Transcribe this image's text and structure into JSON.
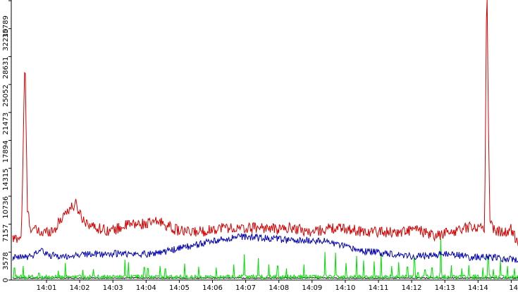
{
  "chart_data": {
    "type": "line",
    "y_ticks": [
      0,
      3578,
      7157,
      10736,
      14315,
      17894,
      21473,
      25052,
      28631,
      32210,
      35789
    ],
    "ylim": [
      0,
      35789
    ],
    "x_ticks": [
      "14:01",
      "14:02",
      "14:03",
      "14:04",
      "14:05",
      "14:06",
      "14:07",
      "14:08",
      "14:09",
      "14:10",
      "14:11",
      "14:12",
      "14:13",
      "14:14",
      "14"
    ],
    "grid": false,
    "legend": "none",
    "series": [
      {
        "color": "#d40000",
        "keypoints": [
          [
            0,
            5200
          ],
          [
            0.25,
            5600
          ],
          [
            0.35,
            28900
          ],
          [
            0.42,
            9000
          ],
          [
            0.5,
            6800
          ],
          [
            0.8,
            6000
          ],
          [
            1.2,
            6500
          ],
          [
            1.5,
            8700
          ],
          [
            1.8,
            9700
          ],
          [
            2.0,
            7800
          ],
          [
            2.3,
            6800
          ],
          [
            2.8,
            6300
          ],
          [
            3.3,
            7100
          ],
          [
            3.8,
            7200
          ],
          [
            4.2,
            7500
          ],
          [
            4.6,
            6500
          ],
          [
            5.0,
            6100
          ],
          [
            5.5,
            6300
          ],
          [
            6.0,
            6800
          ],
          [
            6.5,
            6500
          ],
          [
            7.0,
            6800
          ],
          [
            7.5,
            6500
          ],
          [
            8.0,
            6700
          ],
          [
            8.5,
            6100
          ],
          [
            9.0,
            6600
          ],
          [
            9.5,
            6600
          ],
          [
            10.0,
            6200
          ],
          [
            10.5,
            6200
          ],
          [
            11.0,
            6100
          ],
          [
            11.5,
            6500
          ],
          [
            12.0,
            5600
          ],
          [
            12.5,
            6200
          ],
          [
            13.0,
            6800
          ],
          [
            13.45,
            6800
          ],
          [
            13.5,
            33000
          ],
          [
            13.52,
            35789
          ],
          [
            13.55,
            22000
          ],
          [
            13.6,
            8000
          ],
          [
            13.7,
            6500
          ],
          [
            14.0,
            6000
          ],
          [
            14.2,
            6500
          ],
          [
            14.4,
            4800
          ]
        ],
        "noise": 700,
        "spikes": []
      },
      {
        "color": "#0000b0",
        "keypoints": [
          [
            0,
            2800
          ],
          [
            0.5,
            3000
          ],
          [
            0.8,
            3900
          ],
          [
            1.0,
            3200
          ],
          [
            1.5,
            3000
          ],
          [
            2.0,
            3300
          ],
          [
            2.5,
            3300
          ],
          [
            3.0,
            3400
          ],
          [
            3.5,
            3300
          ],
          [
            4.0,
            3400
          ],
          [
            4.5,
            3800
          ],
          [
            5.0,
            4300
          ],
          [
            5.5,
            4800
          ],
          [
            6.0,
            5200
          ],
          [
            6.5,
            5600
          ],
          [
            7.0,
            5400
          ],
          [
            7.5,
            5300
          ],
          [
            8.0,
            5000
          ],
          [
            8.5,
            5100
          ],
          [
            9.0,
            4900
          ],
          [
            9.5,
            4200
          ],
          [
            10.0,
            3700
          ],
          [
            10.5,
            3500
          ],
          [
            11.0,
            3300
          ],
          [
            11.5,
            3000
          ],
          [
            12.0,
            3200
          ],
          [
            12.5,
            3400
          ],
          [
            13.0,
            2900
          ],
          [
            13.5,
            3000
          ],
          [
            14.0,
            2700
          ],
          [
            14.4,
            2600
          ]
        ],
        "noise": 450,
        "spikes": []
      },
      {
        "color": "#00dd00",
        "keypoints": [
          [
            0,
            400
          ],
          [
            14.4,
            400
          ]
        ],
        "noise": 250,
        "spikes": [
          [
            0.05,
            2600
          ],
          [
            0.3,
            1800
          ],
          [
            0.75,
            1500
          ],
          [
            1.3,
            1200
          ],
          [
            1.5,
            2200
          ],
          [
            2.0,
            1300
          ],
          [
            2.3,
            1400
          ],
          [
            3.2,
            2600
          ],
          [
            3.3,
            2300
          ],
          [
            3.75,
            2700
          ],
          [
            3.85,
            2500
          ],
          [
            4.2,
            1800
          ],
          [
            4.35,
            2400
          ],
          [
            4.9,
            2100
          ],
          [
            5.3,
            1700
          ],
          [
            5.8,
            1600
          ],
          [
            6.3,
            2000
          ],
          [
            6.6,
            3300
          ],
          [
            7.0,
            2800
          ],
          [
            7.3,
            2000
          ],
          [
            7.55,
            3000
          ],
          [
            7.8,
            1500
          ],
          [
            8.3,
            2000
          ],
          [
            8.9,
            3600
          ],
          [
            9.2,
            3500
          ],
          [
            9.5,
            2200
          ],
          [
            9.8,
            3100
          ],
          [
            10.0,
            2500
          ],
          [
            10.3,
            2400
          ],
          [
            10.5,
            3300
          ],
          [
            10.8,
            1800
          ],
          [
            11.0,
            2300
          ],
          [
            11.25,
            2800
          ],
          [
            11.45,
            4700
          ],
          [
            11.55,
            1600
          ],
          [
            11.75,
            2200
          ],
          [
            11.95,
            2600
          ],
          [
            12.2,
            5300
          ],
          [
            12.5,
            1900
          ],
          [
            12.8,
            1500
          ],
          [
            13.0,
            1900
          ],
          [
            13.4,
            1600
          ],
          [
            13.55,
            5000
          ],
          [
            13.7,
            1400
          ],
          [
            13.9,
            2500
          ],
          [
            14.1,
            1800
          ],
          [
            14.3,
            1500
          ]
        ]
      },
      {
        "color": "#111111",
        "keypoints": [
          [
            0,
            250
          ],
          [
            14.4,
            250
          ]
        ],
        "noise": 80,
        "spikes": []
      }
    ]
  }
}
